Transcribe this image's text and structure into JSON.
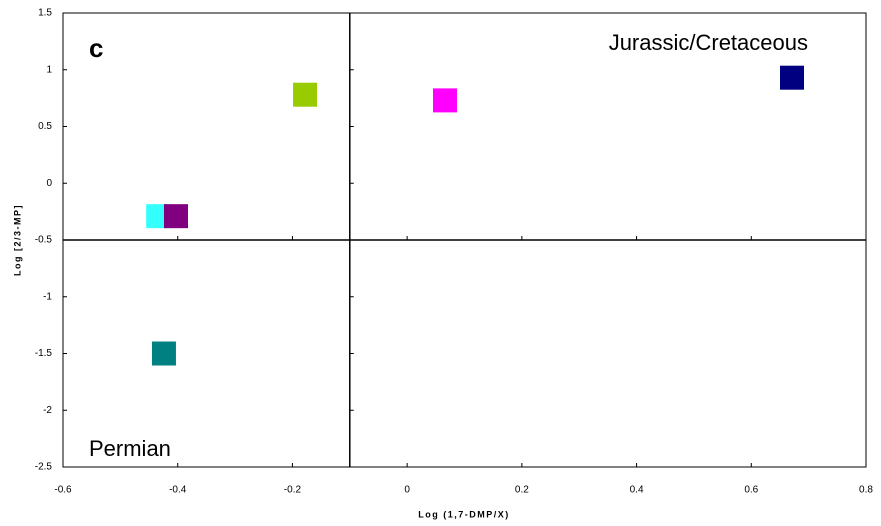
{
  "chart_data": {
    "type": "scatter",
    "x": [
      -0.178,
      0.066,
      0.671,
      -0.434,
      -0.403,
      -0.424
    ],
    "values": [
      0.78,
      0.73,
      0.93,
      -0.29,
      -0.29,
      -1.5
    ],
    "colors": [
      "#99cc00",
      "#ff00ff",
      "#000080",
      "#33ffff",
      "#800080",
      "#008080"
    ],
    "xlim": [
      -0.6,
      0.8
    ],
    "xticks": [
      -0.6,
      -0.4,
      -0.2,
      0,
      0.2,
      0.4,
      0.6,
      0.8
    ],
    "ylim": [
      -2.5,
      1.5
    ],
    "yticks": [
      -2.5,
      -2,
      -1.5,
      -1,
      -0.5,
      0,
      0.5,
      1,
      1.5
    ],
    "xline": -0.1,
    "yline": -0.5,
    "x_label": "Log (1,7-DMP/X)",
    "y_label": "Log [2/3-MP]",
    "annotations": [
      "c",
      "Jurassic/Cretaceous",
      "Permian"
    ]
  }
}
